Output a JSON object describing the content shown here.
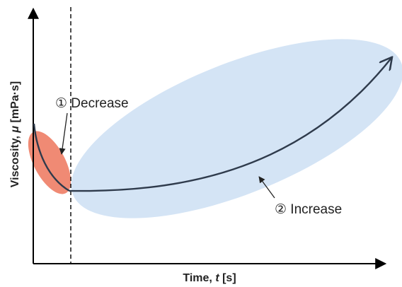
{
  "axes": {
    "x_label_prefix": "Time, ",
    "x_label_symbol": "t",
    "x_label_unit": " [s]",
    "y_label_prefix": "Viscosity, ",
    "y_label_symbol": "μ",
    "y_label_unit": " [mPa·s]"
  },
  "annotations": {
    "decrease": "① Decrease",
    "increase": "② Increase"
  },
  "colors": {
    "axis": "#000000",
    "curve": "#2f3b4c",
    "decrease_region": "#f08a74",
    "increase_region": "#d4e4f5"
  }
}
